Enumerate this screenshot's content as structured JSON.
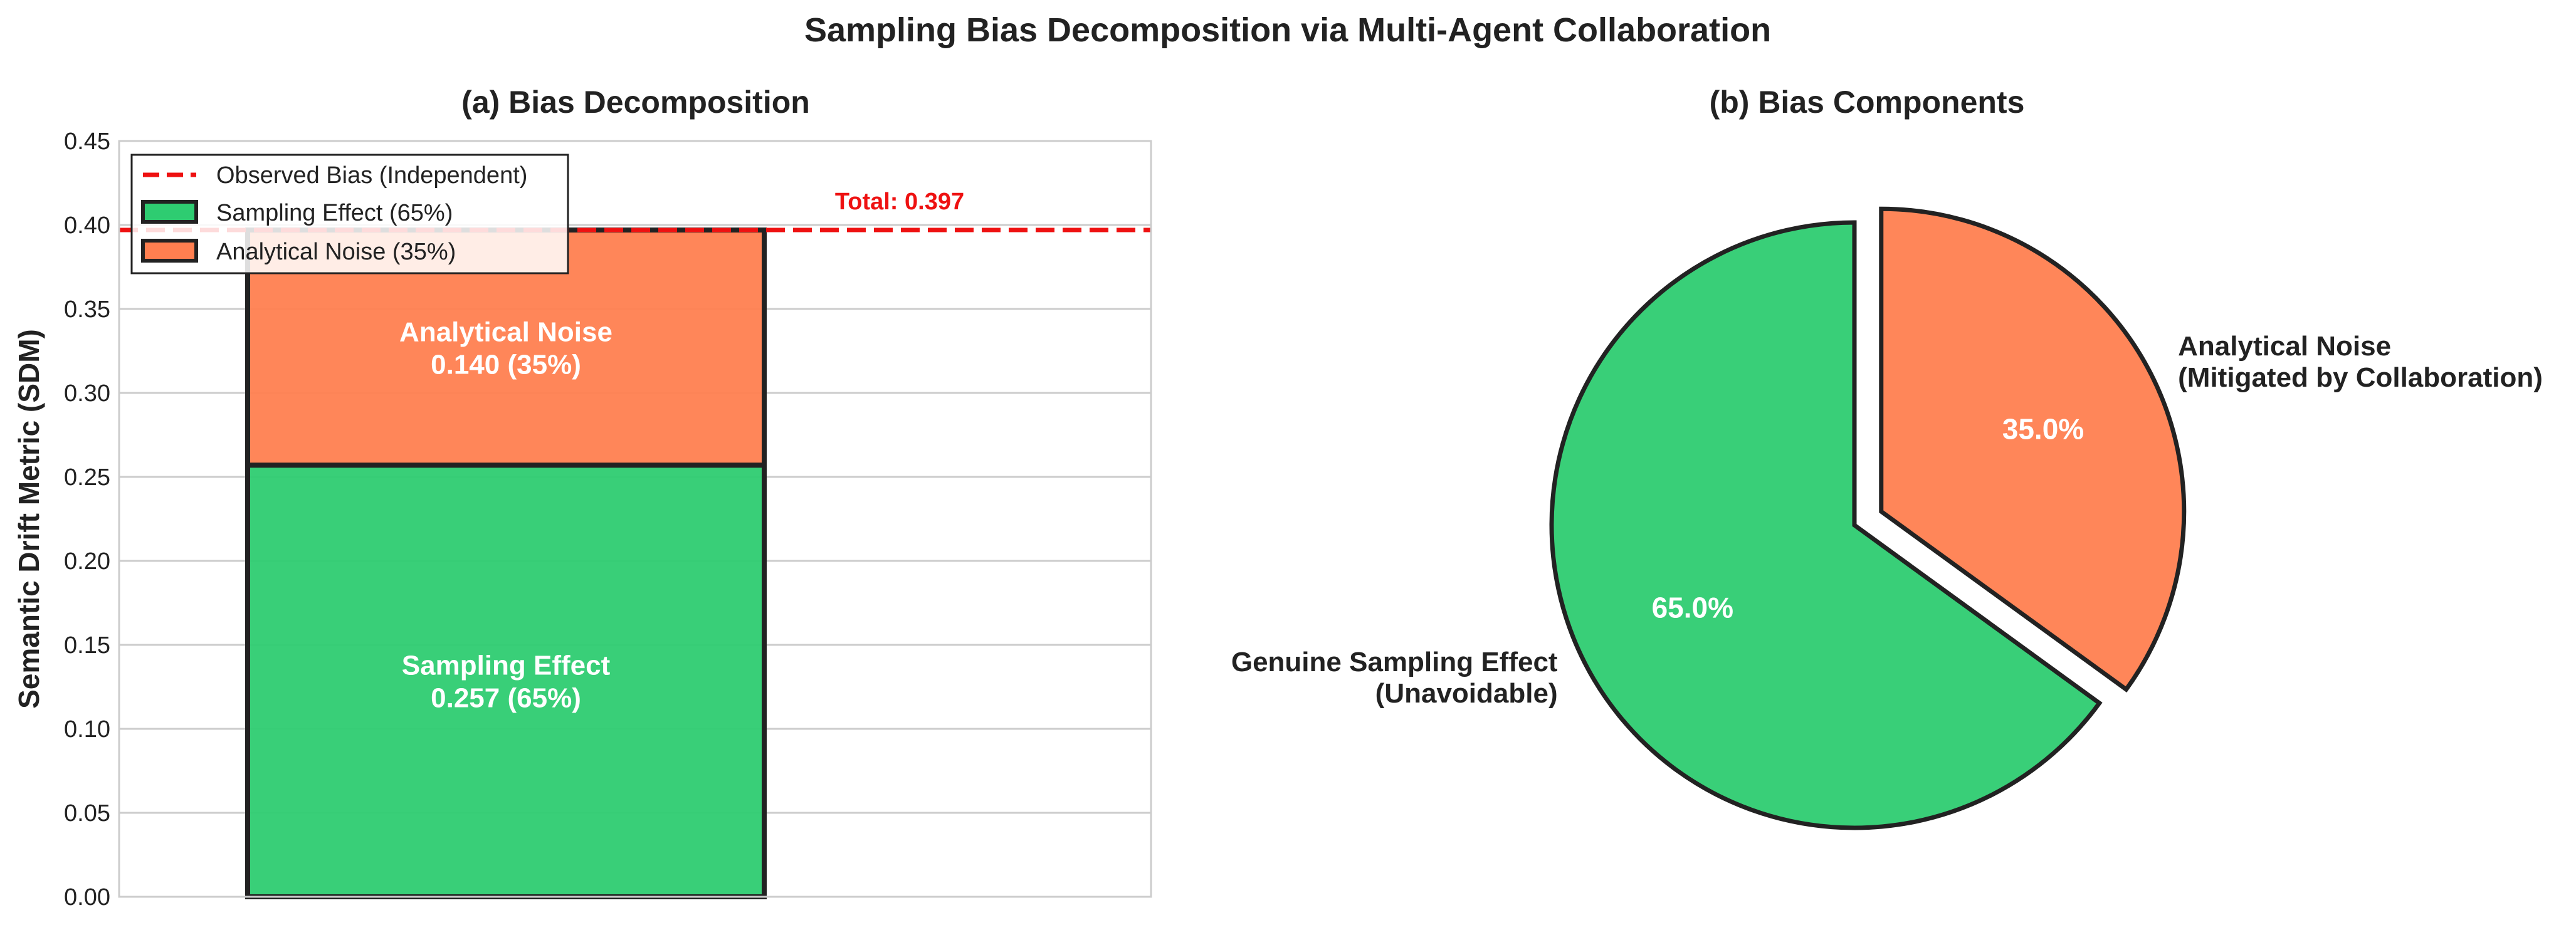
{
  "suptitle": "Sampling Bias Decomposition via Multi-Agent Collaboration",
  "colors": {
    "sampling": "#2ecc71",
    "noise": "#ff7f50",
    "observed_line": "#ee1111",
    "edge": "#222222",
    "grid": "#cccccc",
    "label_text": "#ffffff"
  },
  "chart_data": [
    {
      "type": "bar",
      "title": "(a) Bias Decomposition",
      "xlabel": "",
      "ylabel": "Semantic Drift Metric (SDM)",
      "ylim": [
        0,
        0.45
      ],
      "yticks": [
        "0.00",
        "0.05",
        "0.10",
        "0.15",
        "0.20",
        "0.25",
        "0.30",
        "0.35",
        "0.40",
        "0.45"
      ],
      "grid": true,
      "stacked": true,
      "series": [
        {
          "name": "Sampling Effect (65%)",
          "values": [
            0.257
          ],
          "bar_label": [
            "Sampling Effect",
            "0.257 (65%)"
          ]
        },
        {
          "name": "Analytical Noise (35%)",
          "values": [
            0.14
          ],
          "bar_label": [
            "Analytical Noise",
            "0.140 (35%)"
          ]
        }
      ],
      "reference_line": {
        "name": "Observed Bias (Independent)",
        "y": 0.397,
        "style": "dashed"
      },
      "annotation": "Total: 0.397",
      "legend_position": "top-left"
    },
    {
      "type": "pie",
      "title": "(b) Bias Components",
      "slices": [
        {
          "label_lines": [
            "Genuine Sampling Effect",
            "(Unavoidable)"
          ],
          "value": 65.0,
          "pct_label": "65.0%",
          "explode": false
        },
        {
          "label_lines": [
            "Analytical Noise",
            "(Mitigated by Collaboration)"
          ],
          "value": 35.0,
          "pct_label": "35.0%",
          "explode": true
        }
      ],
      "start_angle": 90,
      "direction": "clockwise"
    }
  ]
}
